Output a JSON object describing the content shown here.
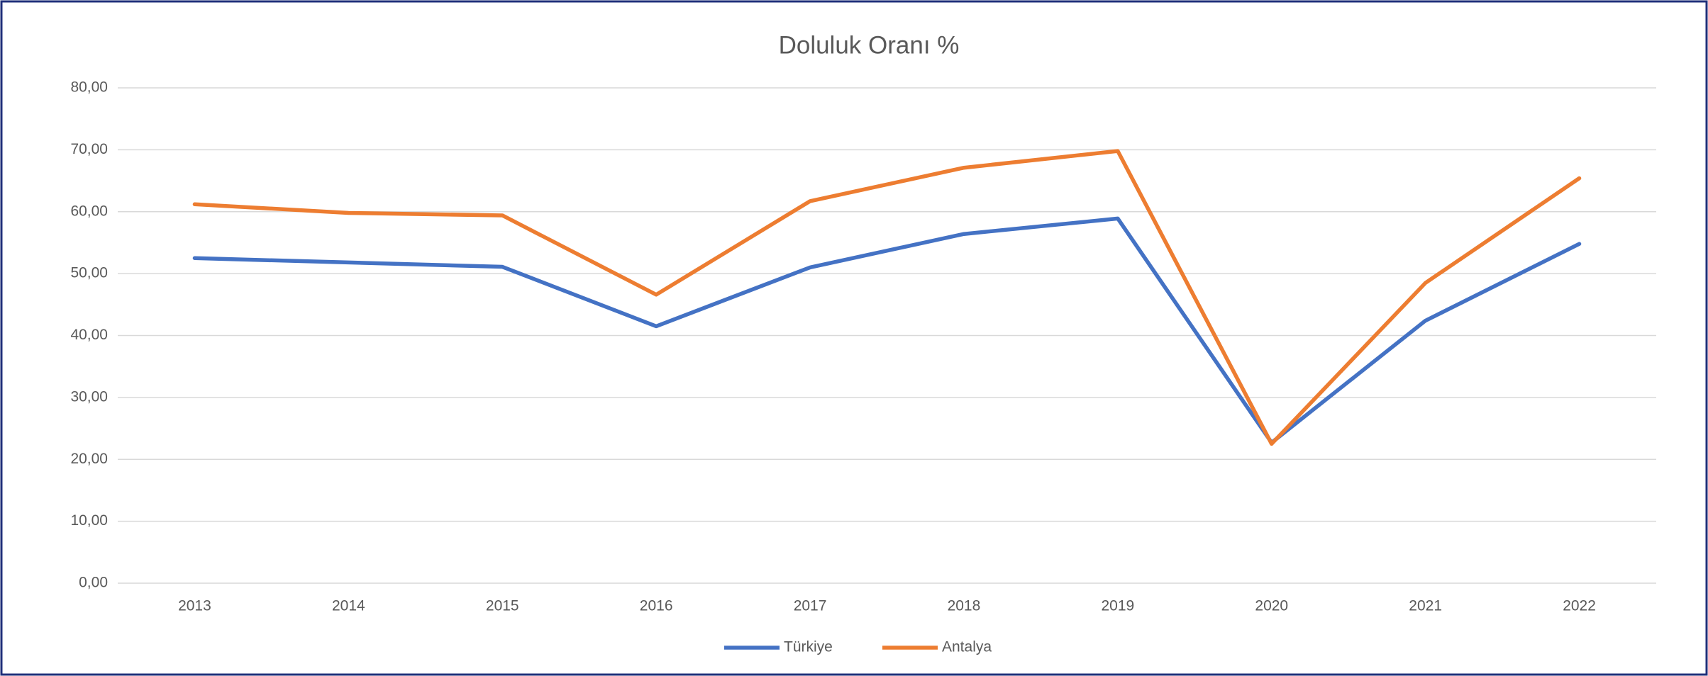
{
  "chart_data": {
    "type": "line",
    "title": "Doluluk Oranı %",
    "categories": [
      "2013",
      "2014",
      "2015",
      "2016",
      "2017",
      "2018",
      "2019",
      "2020",
      "2021",
      "2022"
    ],
    "series": [
      {
        "name": "Türkiye",
        "color": "#4472c4",
        "values": [
          52.5,
          51.8,
          51.1,
          41.5,
          51.0,
          56.4,
          58.9,
          22.7,
          42.4,
          54.8
        ]
      },
      {
        "name": "Antalya",
        "color": "#ed7d31",
        "values": [
          61.2,
          59.8,
          59.4,
          46.6,
          61.7,
          67.1,
          69.8,
          22.5,
          48.5,
          65.4
        ]
      }
    ],
    "ylim": [
      0,
      80
    ],
    "yticks": [
      {
        "value": 0,
        "label": "0,00"
      },
      {
        "value": 10,
        "label": "10,00"
      },
      {
        "value": 20,
        "label": "20,00"
      },
      {
        "value": 30,
        "label": "30,00"
      },
      {
        "value": 40,
        "label": "40,00"
      },
      {
        "value": 50,
        "label": "50,00"
      },
      {
        "value": 60,
        "label": "60,00"
      },
      {
        "value": 70,
        "label": "70,00"
      },
      {
        "value": 80,
        "label": "80,00"
      }
    ],
    "grid": true,
    "legend": "bottom"
  }
}
